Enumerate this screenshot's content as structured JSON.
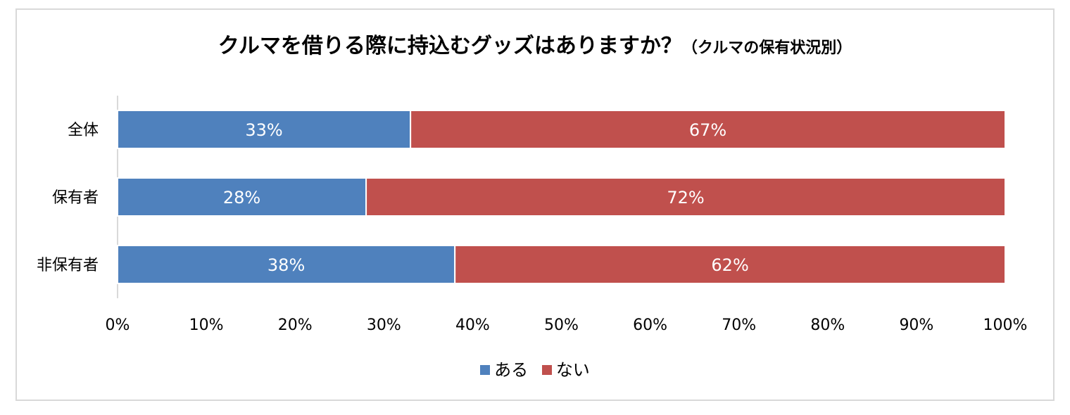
{
  "chart_data": {
    "type": "bar",
    "orientation": "horizontal",
    "stacked": true,
    "title": "クルマを借りる際に持込むグッズはありますか？",
    "subtitle": "（クルマの保有状況別）",
    "categories": [
      "全体",
      "保有者",
      "非保有者"
    ],
    "series": [
      {
        "name": "ある",
        "color": "#4f81bd",
        "values": [
          33,
          28,
          38
        ],
        "labels": [
          "33%",
          "28%",
          "38%"
        ]
      },
      {
        "name": "ない",
        "color": "#c0504d",
        "values": [
          67,
          72,
          62
        ],
        "labels": [
          "67%",
          "72%",
          "62%"
        ]
      }
    ],
    "xlim": [
      0,
      100
    ],
    "xticks": [
      "0%",
      "10%",
      "20%",
      "30%",
      "40%",
      "50%",
      "60%",
      "70%",
      "80%",
      "90%",
      "100%"
    ],
    "grid": false,
    "legend_position": "bottom"
  }
}
